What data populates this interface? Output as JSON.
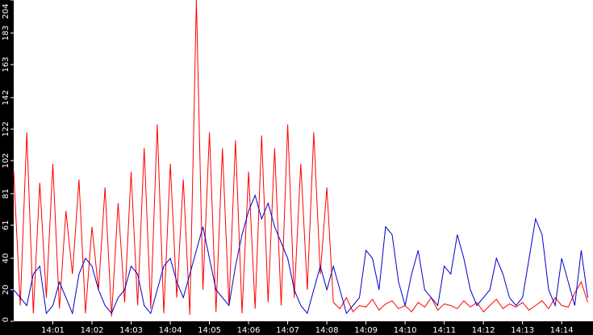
{
  "chart_data": {
    "type": "line",
    "x": [
      0,
      10,
      20,
      30,
      40,
      50,
      60,
      70,
      80,
      90,
      100,
      110,
      120,
      130,
      140,
      150,
      160,
      170,
      180,
      190,
      200,
      210,
      220,
      230,
      240,
      250,
      260,
      270,
      280,
      290,
      300,
      310,
      320,
      330,
      340,
      350,
      360,
      370,
      380,
      390,
      400,
      410,
      420,
      430,
      440,
      450,
      460,
      470,
      480,
      490,
      500,
      510,
      520,
      530,
      540,
      550,
      560,
      570,
      580,
      590,
      600,
      610,
      620,
      630,
      640,
      650,
      660,
      670,
      680,
      690,
      700,
      710,
      720,
      730,
      740,
      750,
      760,
      770,
      780,
      790,
      800,
      810,
      820,
      830,
      840,
      850,
      860,
      870,
      880
    ],
    "series": [
      {
        "color": "#ff0000",
        "values": [
          95,
          10,
          120,
          5,
          88,
          15,
          100,
          8,
          70,
          30,
          90,
          5,
          60,
          20,
          85,
          3,
          75,
          12,
          95,
          10,
          110,
          8,
          125,
          5,
          100,
          15,
          90,
          4,
          204,
          20,
          120,
          6,
          110,
          10,
          115,
          5,
          95,
          8,
          118,
          12,
          110,
          10,
          125,
          15,
          100,
          20,
          120,
          30,
          85,
          12,
          8,
          15,
          6,
          10,
          9,
          14,
          7,
          11,
          13,
          8,
          10,
          6,
          12,
          9,
          15,
          7,
          11,
          10,
          8,
          13,
          9,
          12,
          6,
          10,
          14,
          8,
          11,
          9,
          12,
          7,
          10,
          13,
          8,
          15,
          10,
          9,
          18,
          25,
          12
        ]
      },
      {
        "color": "#0000cc",
        "values": [
          20,
          15,
          10,
          30,
          35,
          5,
          10,
          25,
          15,
          5,
          30,
          40,
          35,
          20,
          10,
          5,
          15,
          20,
          35,
          30,
          10,
          5,
          20,
          35,
          40,
          25,
          15,
          30,
          45,
          60,
          40,
          20,
          15,
          10,
          35,
          55,
          70,
          80,
          65,
          75,
          60,
          50,
          40,
          20,
          10,
          5,
          20,
          35,
          20,
          35,
          20,
          5,
          10,
          15,
          45,
          40,
          20,
          60,
          55,
          25,
          10,
          30,
          45,
          20,
          15,
          10,
          35,
          30,
          55,
          40,
          20,
          10,
          15,
          20,
          40,
          30,
          15,
          10,
          15,
          40,
          65,
          55,
          20,
          10,
          40,
          25,
          10,
          45,
          15
        ]
      }
    ],
    "xlim": [
      0,
      888
    ],
    "xticks": [
      {
        "value": 60,
        "label": "14:01"
      },
      {
        "value": 120,
        "label": "14:02"
      },
      {
        "value": 180,
        "label": "14:03"
      },
      {
        "value": 240,
        "label": "14:04"
      },
      {
        "value": 300,
        "label": "14:05"
      },
      {
        "value": 360,
        "label": "14:06"
      },
      {
        "value": 420,
        "label": "14:07"
      },
      {
        "value": 480,
        "label": "14:08"
      },
      {
        "value": 540,
        "label": "14:09"
      },
      {
        "value": 600,
        "label": "14:10"
      },
      {
        "value": 660,
        "label": "14:11"
      },
      {
        "value": 720,
        "label": "14:12"
      },
      {
        "value": 780,
        "label": "14:13"
      },
      {
        "value": 840,
        "label": "14:14"
      }
    ],
    "ylim": [
      0,
      204
    ],
    "yticks": [
      0,
      20,
      40,
      61,
      81,
      102,
      122,
      142,
      163,
      183,
      204
    ]
  }
}
